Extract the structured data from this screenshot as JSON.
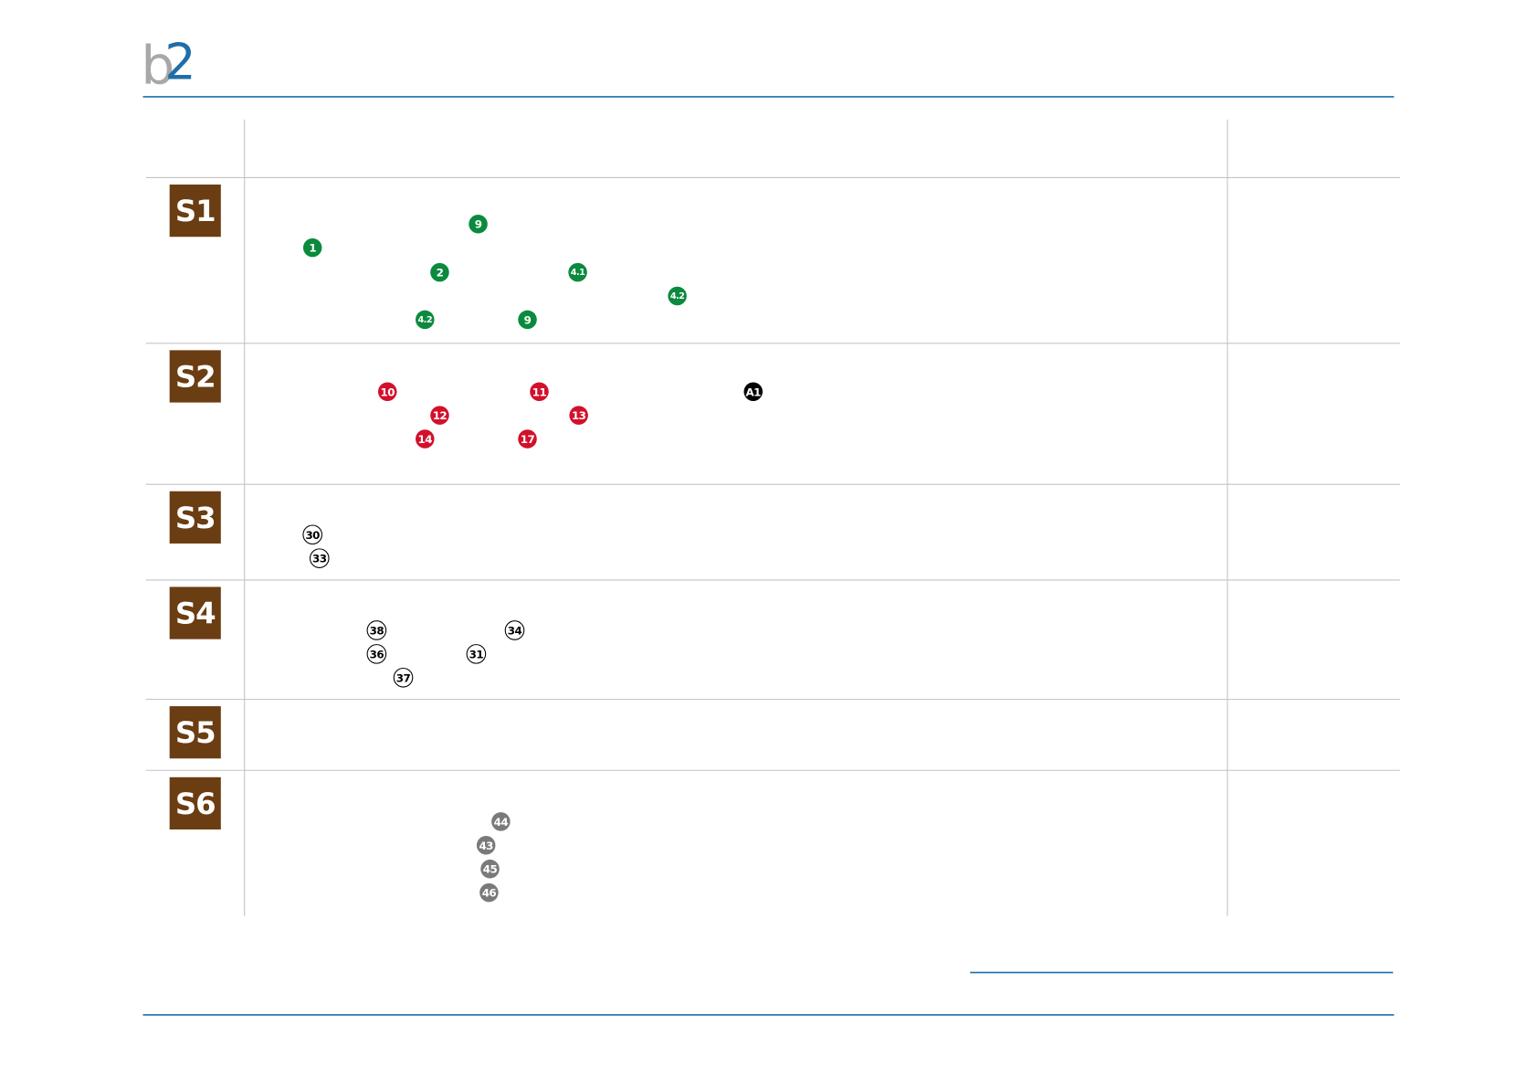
{
  "logo": [
    "b",
    "2"
  ],
  "rows": [
    {
      "label": "S1",
      "badges": [
        {
          "text": "9",
          "color": "#0b8a3e"
        },
        {
          "text": "1",
          "color": "#0b8a3e"
        },
        {
          "text": "2",
          "color": "#0b8a3e"
        },
        {
          "text": "4.1",
          "color": "#0b8a3e"
        },
        {
          "text": "4.2",
          "color": "#0b8a3e"
        },
        {
          "text": "4.2",
          "color": "#0b8a3e"
        },
        {
          "text": "9",
          "color": "#0b8a3e"
        }
      ]
    },
    {
      "label": "S2",
      "badges": [
        {
          "text": "10",
          "color": "#d3102b"
        },
        {
          "text": "11",
          "color": "#d3102b"
        },
        {
          "text": "A1",
          "color": "#000000"
        },
        {
          "text": "12",
          "color": "#d3102b"
        },
        {
          "text": "13",
          "color": "#d3102b"
        },
        {
          "text": "14",
          "color": "#d3102b"
        },
        {
          "text": "17",
          "color": "#d3102b"
        }
      ]
    },
    {
      "label": "S3",
      "badges": [
        {
          "text": "30",
          "color": "#ffffff"
        },
        {
          "text": "33",
          "color": "#ffffff"
        }
      ]
    },
    {
      "label": "S4",
      "badges": [
        {
          "text": "38",
          "color": "#ffffff"
        },
        {
          "text": "34",
          "color": "#ffffff"
        },
        {
          "text": "36",
          "color": "#ffffff"
        },
        {
          "text": "31",
          "color": "#ffffff"
        },
        {
          "text": "37",
          "color": "#ffffff"
        }
      ]
    },
    {
      "label": "S5",
      "badges": []
    },
    {
      "label": "S6",
      "badges": [
        {
          "text": "44",
          "color": "#7a7a7a"
        },
        {
          "text": "43",
          "color": "#7a7a7a"
        },
        {
          "text": "45",
          "color": "#7a7a7a"
        },
        {
          "text": "46",
          "color": "#7a7a7a"
        }
      ]
    }
  ]
}
